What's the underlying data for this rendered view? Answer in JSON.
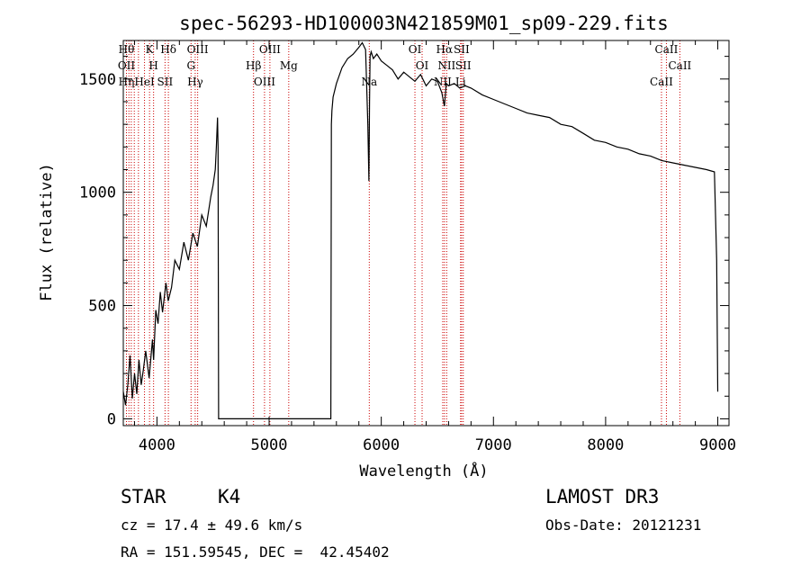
{
  "chart_data": {
    "type": "line",
    "title": "spec-56293-HD100003N421859M01_sp09-229.fits",
    "xlabel": "Wavelength (Å)",
    "ylabel": "Flux (relative)",
    "xlim": [
      3700,
      9100
    ],
    "ylim": [
      -30,
      1670
    ],
    "xticks": [
      4000,
      5000,
      6000,
      7000,
      8000,
      9000
    ],
    "yticks": [
      0,
      500,
      1000,
      1500
    ],
    "grid": false,
    "series": [
      {
        "x": [
          3700,
          3720,
          3740,
          3760,
          3780,
          3800,
          3820,
          3840,
          3860,
          3880,
          3900,
          3930,
          3960,
          3970,
          3990,
          4010,
          4030,
          4050,
          4080,
          4100,
          4130,
          4160,
          4200,
          4240,
          4280,
          4320,
          4360,
          4400,
          4440,
          4480,
          4500,
          4520,
          4530,
          4540,
          4545,
          4550,
          5550,
          5555,
          5560,
          5570,
          5600,
          5650,
          5700,
          5750,
          5800,
          5830,
          5860,
          5880,
          5890,
          5895,
          5900,
          5910,
          5930,
          5960,
          6000,
          6050,
          6100,
          6150,
          6200,
          6250,
          6300,
          6350,
          6400,
          6450,
          6500,
          6540,
          6563,
          6580,
          6600,
          6650,
          6700,
          6750,
          6800,
          6900,
          7000,
          7100,
          7200,
          7300,
          7400,
          7500,
          7600,
          7700,
          7800,
          7900,
          8000,
          8100,
          8200,
          8300,
          8400,
          8500,
          8600,
          8700,
          8800,
          8900,
          8970,
          8990,
          9000
        ],
        "y": [
          120,
          60,
          150,
          280,
          90,
          200,
          110,
          260,
          150,
          220,
          300,
          180,
          350,
          260,
          480,
          420,
          560,
          470,
          600,
          520,
          580,
          700,
          660,
          780,
          700,
          820,
          760,
          900,
          850,
          980,
          1030,
          1100,
          1200,
          1330,
          1200,
          0,
          0,
          1300,
          1360,
          1420,
          1480,
          1550,
          1590,
          1610,
          1640,
          1660,
          1630,
          1300,
          1050,
          1400,
          1600,
          1620,
          1590,
          1610,
          1580,
          1560,
          1540,
          1500,
          1530,
          1510,
          1490,
          1520,
          1470,
          1500,
          1490,
          1440,
          1380,
          1480,
          1470,
          1480,
          1460,
          1470,
          1460,
          1430,
          1410,
          1390,
          1370,
          1350,
          1340,
          1330,
          1300,
          1290,
          1260,
          1230,
          1220,
          1200,
          1190,
          1170,
          1160,
          1140,
          1130,
          1120,
          1110,
          1100,
          1090,
          700,
          120
        ]
      }
    ],
    "lines": [
      {
        "x": 3728,
        "labels": [
          "Hθ",
          "OII",
          "Hη"
        ]
      },
      {
        "x": 3750,
        "labels": []
      },
      {
        "x": 3771,
        "labels": []
      },
      {
        "x": 3798,
        "labels": []
      },
      {
        "x": 3835,
        "labels": []
      },
      {
        "x": 3889,
        "labels": [
          "HeI"
        ]
      },
      {
        "x": 3934,
        "labels": [
          "K"
        ]
      },
      {
        "x": 3970,
        "labels": [
          "H"
        ]
      },
      {
        "x": 4072,
        "labels": [
          "SII"
        ]
      },
      {
        "x": 4102,
        "labels": [
          "Hδ"
        ]
      },
      {
        "x": 4304,
        "labels": [
          "G"
        ]
      },
      {
        "x": 4341,
        "labels": [
          "Hγ"
        ]
      },
      {
        "x": 4363,
        "labels": [
          "OIII"
        ]
      },
      {
        "x": 4861,
        "labels": [
          "Hβ"
        ]
      },
      {
        "x": 4959,
        "labels": [
          "OIII"
        ]
      },
      {
        "x": 5007,
        "labels": [
          "OIII"
        ]
      },
      {
        "x": 5175,
        "labels": [
          "Mg"
        ]
      },
      {
        "x": 5893,
        "labels": [
          "Na"
        ]
      },
      {
        "x": 6300,
        "labels": [
          "OI"
        ]
      },
      {
        "x": 6364,
        "labels": [
          "OI"
        ]
      },
      {
        "x": 6548,
        "labels": [
          "NII"
        ]
      },
      {
        "x": 6563,
        "labels": [
          "Hα"
        ]
      },
      {
        "x": 6583,
        "labels": [
          "NII"
        ]
      },
      {
        "x": 6707,
        "labels": [
          "Li"
        ]
      },
      {
        "x": 6716,
        "labels": [
          "SII"
        ]
      },
      {
        "x": 6731,
        "labels": [
          "SII"
        ]
      },
      {
        "x": 8498,
        "labels": [
          "CaII"
        ]
      },
      {
        "x": 8542,
        "labels": [
          "CaII"
        ]
      },
      {
        "x": 8662,
        "labels": [
          "CaII"
        ]
      }
    ]
  },
  "info": {
    "object_class": "STAR",
    "subclass": "K4",
    "survey": "LAMOST DR3",
    "cz": "cz = 17.4 ± 49.6 km/s",
    "obs_date": "Obs-Date: 20121231",
    "coords": "RA = 151.59545, DEC =  42.45402"
  },
  "colors": {
    "spectrum": "#000000",
    "line_marker": "#cc0000",
    "axes": "#000000"
  }
}
